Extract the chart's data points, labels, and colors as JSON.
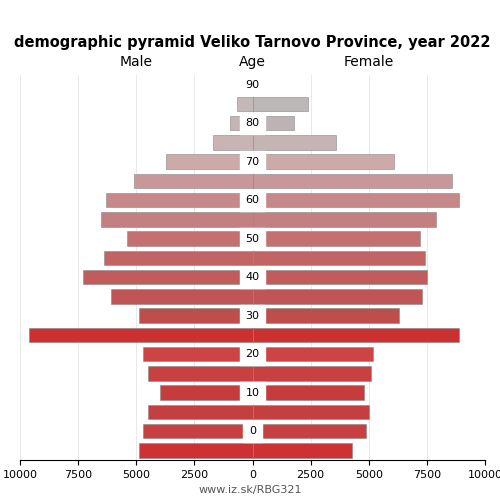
{
  "title": "demographic pyramid Veliko Tarnovo Province, year 2022",
  "label_male": "Male",
  "label_female": "Female",
  "label_age": "Age",
  "watermark": "www.iz.sk/RBG321",
  "age_labels": [
    "90",
    "80",
    "70",
    "60",
    "50",
    "40",
    "30",
    "20",
    "10",
    "0"
  ],
  "male": [
    200,
    650,
    950,
    1700,
    3700,
    5100,
    6300,
    6500,
    5400,
    6400,
    7300,
    6100,
    4900,
    9600,
    4700,
    4500,
    4000,
    4500,
    4700,
    4900
  ],
  "female": [
    500,
    2400,
    1800,
    3600,
    6100,
    8600,
    8900,
    7900,
    7200,
    7400,
    7500,
    7300,
    6300,
    8900,
    5200,
    5100,
    4800,
    5000,
    4900,
    4300
  ],
  "colors_by_group": [
    [
      "#c4bcbc",
      "#c4bcbc",
      "#c4bcbc",
      "#c4bcbc"
    ],
    [
      "#cdb0b0",
      "#cdb0b0",
      "#cdb0b0",
      "#cdb0b0"
    ],
    [
      "#c89898",
      "#c89898",
      "#c89898",
      "#c89898"
    ],
    [
      "#c47878",
      "#c47878",
      "#c47878",
      "#c47878"
    ],
    [
      "#c45050",
      "#c45050",
      "#c45050",
      "#cd3030"
    ]
  ],
  "female_lighten": 0,
  "xlim": 10000,
  "bar_height": 0.75,
  "figsize": [
    5.0,
    5.0
  ],
  "dpi": 100
}
